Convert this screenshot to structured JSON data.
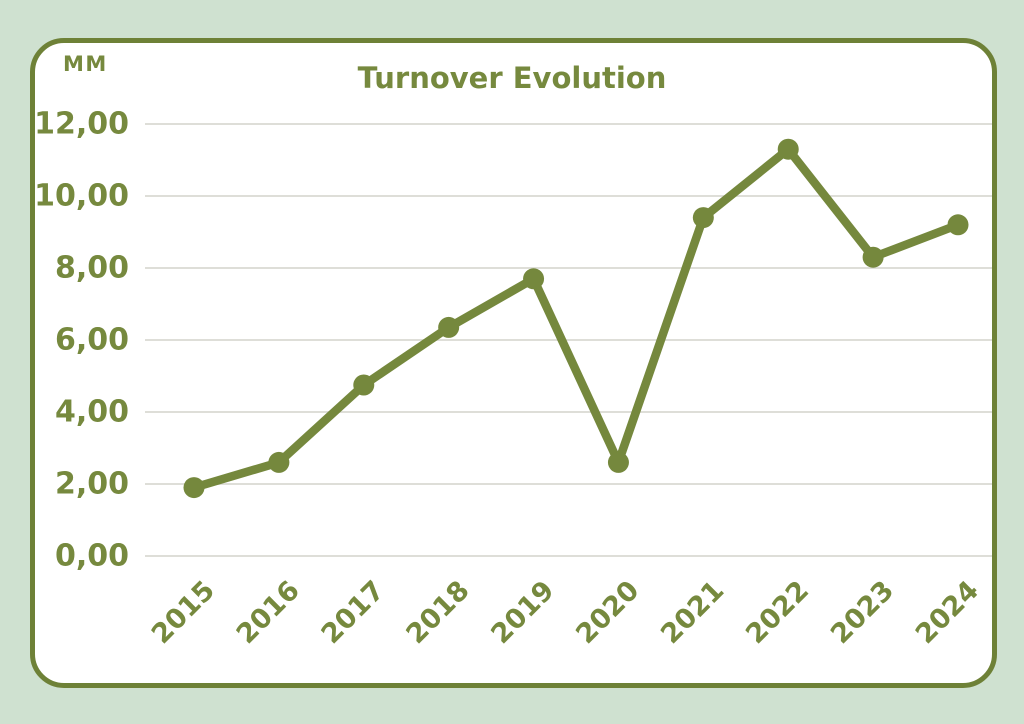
{
  "header": {
    "title": "Turnover Evolution",
    "unit_label": "MM"
  },
  "colors": {
    "background": "#cfe1d0",
    "card_background": "#ffffff",
    "card_border": "#6e8137",
    "accent_green": "#76893e",
    "line_green": "#75883d",
    "gridline": "#d9d9d3"
  },
  "chart_data": {
    "type": "line",
    "title": "Turnover Evolution",
    "unit_label": "MM",
    "categories": [
      "2015",
      "2016",
      "2017",
      "2018",
      "2019",
      "2020",
      "2021",
      "2022",
      "2023",
      "2024"
    ],
    "series": [
      {
        "name": "Turnover",
        "values": [
          1.9,
          2.6,
          4.75,
          6.35,
          7.7,
          2.6,
          9.4,
          11.3,
          8.3,
          9.2
        ]
      }
    ],
    "xlabel": "",
    "ylabel": "MM",
    "ylim": [
      0,
      12
    ],
    "ytick_step": 2,
    "ytick_labels": [
      "0,00",
      "2,00",
      "4,00",
      "6,00",
      "8,00",
      "10,00",
      "12,00"
    ],
    "grid": true,
    "legend": "none",
    "marker": "circle",
    "x_label_rotation_deg": -45
  }
}
